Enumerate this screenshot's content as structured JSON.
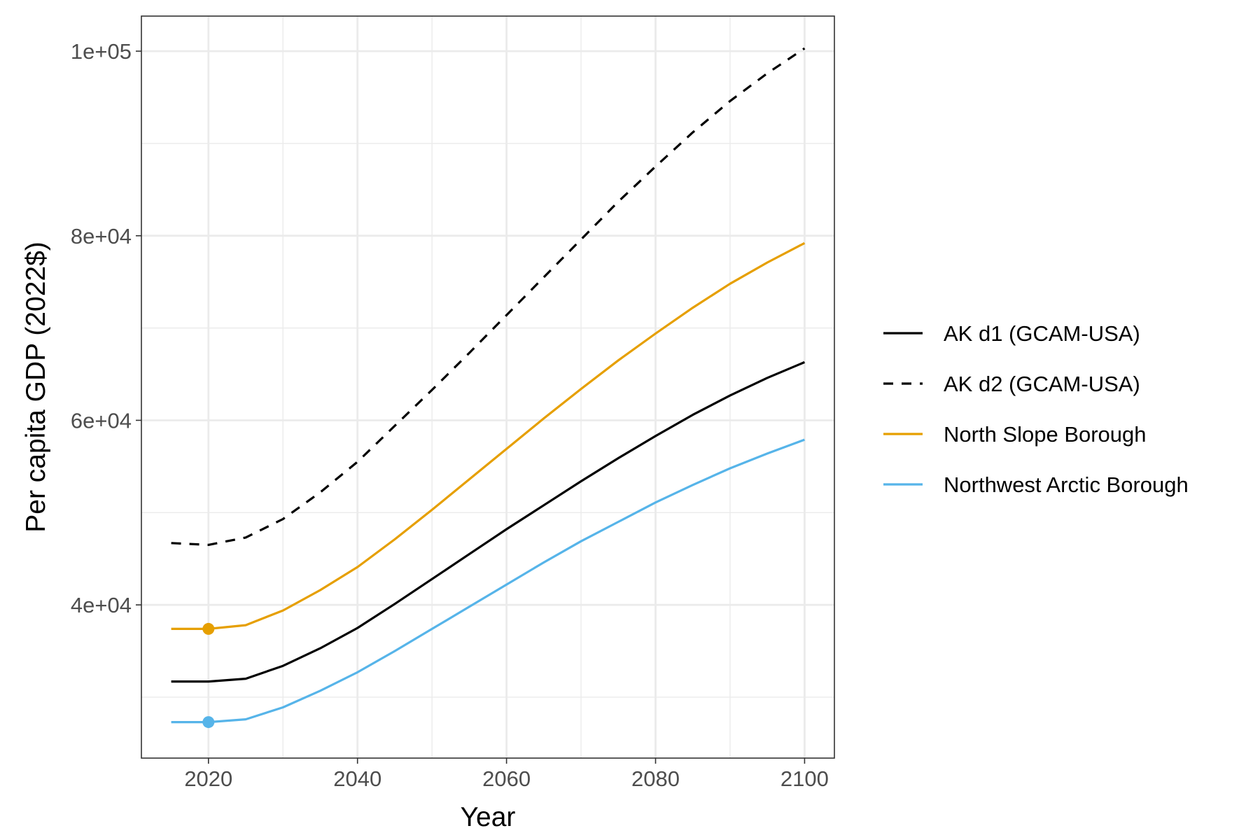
{
  "chart_data": {
    "type": "line",
    "title": "",
    "xlabel": "Year",
    "ylabel": "Per capita GDP (2022$)",
    "xlim": [
      2011,
      2104
    ],
    "ylim": [
      23400,
      103800
    ],
    "x_ticks": [
      2020,
      2040,
      2060,
      2080,
      2100
    ],
    "x_tick_labels": [
      "2020",
      "2040",
      "2060",
      "2080",
      "2100"
    ],
    "y_ticks": [
      40000,
      60000,
      80000,
      100000
    ],
    "y_tick_labels": [
      "4e+04",
      "6e+04",
      "8e+04",
      "1e+05"
    ],
    "y_minor_ticks": [
      30000,
      50000,
      70000,
      90000
    ],
    "x_minor_ticks": [
      2030,
      2050,
      2070,
      2090
    ],
    "grid": true,
    "legend_position": "right",
    "x": [
      2015,
      2020,
      2025,
      2030,
      2035,
      2040,
      2045,
      2050,
      2055,
      2060,
      2065,
      2070,
      2075,
      2080,
      2085,
      2090,
      2095,
      2100
    ],
    "series": [
      {
        "name": "AK d1 (GCAM-USA)",
        "color": "#000000",
        "dash": "solid",
        "values": [
          31700,
          31700,
          32000,
          33400,
          35300,
          37500,
          40100,
          42800,
          45500,
          48200,
          50800,
          53400,
          55900,
          58300,
          60600,
          62700,
          64600,
          66300
        ]
      },
      {
        "name": "AK d2 (GCAM-USA)",
        "color": "#000000",
        "dash": "dashed",
        "values": [
          46700,
          46500,
          47300,
          49300,
          52200,
          55500,
          59400,
          63300,
          67300,
          71400,
          75500,
          79600,
          83700,
          87500,
          91200,
          94600,
          97600,
          100300
        ]
      },
      {
        "name": "North Slope Borough",
        "color": "#E69F00",
        "dash": "solid",
        "values": [
          37400,
          37400,
          37800,
          39400,
          41600,
          44100,
          47100,
          50300,
          53600,
          56900,
          60200,
          63400,
          66500,
          69400,
          72200,
          74800,
          77100,
          79200
        ],
        "highlight_point": [
          2020,
          37400
        ]
      },
      {
        "name": "Northwest Arctic Borough",
        "color": "#56B4E9",
        "dash": "solid",
        "values": [
          27300,
          27300,
          27600,
          28900,
          30700,
          32700,
          35000,
          37400,
          39800,
          42200,
          44600,
          46900,
          49000,
          51100,
          53000,
          54800,
          56400,
          57900
        ],
        "highlight_point": [
          2020,
          27300
        ]
      }
    ]
  }
}
